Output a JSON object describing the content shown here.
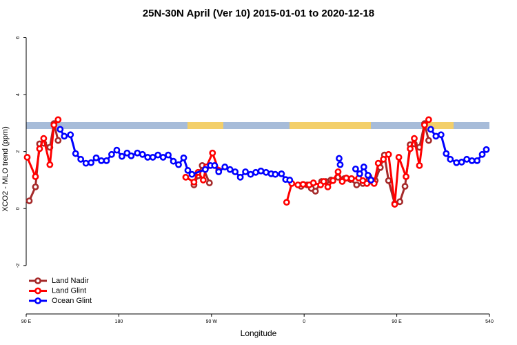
{
  "chart_data": {
    "type": "line",
    "title": "25N-30N April (Ver 10)   2015-01-01 to 2020-12-18",
    "x_label": "Longitude",
    "y_label": "XCO2 - MLO trend (ppm)",
    "xlim": [
      90,
      540
    ],
    "xticks": [
      {
        "value": 90,
        "label": "90 E"
      },
      180,
      {
        "value": 270,
        "label": "90 W"
      },
      {
        "value": 360,
        "label": "0"
      },
      {
        "value": 450,
        "label": "90 E"
      },
      540
    ],
    "ylim": [
      -3.7,
      6.4
    ],
    "yticks": [
      -2,
      0,
      2,
      4,
      6
    ],
    "legend": "bottom-left",
    "series": [
      {
        "name": "Land Nadir",
        "color": "#a52a2a",
        "x": [
          93,
          99,
          103,
          107,
          113,
          117,
          121,
          null,
          253,
          257,
          261,
          268,
          null,
          357,
          363,
          367,
          371,
          377,
          381,
          386,
          393,
          399,
          405,
          411,
          417,
          423,
          429,
          434,
          438,
          442,
          448,
          453,
          458,
          463,
          467,
          472,
          477,
          481
        ],
        "values": [
          0.27,
          0.76,
          2.27,
          2.29,
          2.15,
          2.98,
          2.39,
          null,
          0.83,
          1.15,
          1.51,
          0.9,
          null,
          0.78,
          0.83,
          0.71,
          0.61,
          0.95,
          0.95,
          1.0,
          1.1,
          1.05,
          1.02,
          0.83,
          0.88,
          1.12,
          0.98,
          1.44,
          1.88,
          0.98,
          0.17,
          0.24,
          0.78,
          2.24,
          2.27,
          2.15,
          2.98,
          2.39
        ]
      },
      {
        "name": "Land Glint",
        "color": "#ff0000",
        "x": [
          91,
          99,
          103,
          107,
          113,
          117,
          121,
          null,
          245,
          253,
          257,
          262,
          265,
          271,
          277,
          null,
          343,
          348,
          354,
          359,
          365,
          369,
          376,
          379,
          383,
          388,
          393,
          397,
          401,
          406,
          413,
          417,
          421,
          428,
          432,
          437,
          442,
          448,
          452,
          459,
          463,
          467,
          472,
          477,
          481
        ],
        "values": [
          1.8,
          1.12,
          2.1,
          2.46,
          1.54,
          2.93,
          3.12,
          null,
          1.1,
          0.93,
          1.27,
          1.0,
          1.46,
          1.95,
          1.34,
          null,
          0.22,
          0.88,
          0.83,
          0.85,
          0.83,
          0.9,
          0.83,
          0.95,
          0.76,
          0.98,
          1.29,
          0.95,
          1.07,
          1.05,
          1.07,
          0.98,
          0.88,
          0.88,
          1.59,
          1.73,
          1.9,
          0.15,
          1.8,
          1.12,
          2.1,
          2.46,
          1.51,
          2.93,
          3.12
        ]
      },
      {
        "name": "Ocean Glint",
        "color": "#0000ff",
        "x": [
          123,
          127,
          133,
          138,
          143,
          148,
          153,
          158,
          163,
          168,
          173,
          178,
          183,
          188,
          192,
          198,
          203,
          208,
          213,
          218,
          223,
          228,
          233,
          238,
          243,
          247,
          251,
          264,
          269,
          273,
          277,
          283,
          288,
          293,
          298,
          303,
          308,
          313,
          318,
          323,
          328,
          332,
          338,
          342,
          346,
          null,
          394,
          395,
          null,
          410,
          414,
          418,
          422,
          425,
          null,
          483,
          488,
          493,
          498,
          502,
          508,
          513,
          518,
          523,
          528,
          533,
          537
        ],
        "values": [
          2.78,
          2.54,
          2.59,
          1.93,
          1.73,
          1.59,
          1.61,
          1.78,
          1.68,
          1.68,
          1.9,
          2.05,
          1.83,
          1.95,
          1.85,
          1.95,
          1.9,
          1.8,
          1.8,
          1.88,
          1.8,
          1.88,
          1.66,
          1.54,
          1.78,
          1.34,
          1.2,
          1.37,
          1.51,
          1.51,
          1.29,
          1.46,
          1.37,
          1.29,
          1.1,
          1.29,
          1.2,
          1.27,
          1.32,
          1.27,
          1.22,
          1.2,
          1.22,
          1.02,
          1.0,
          null,
          1.76,
          1.54,
          null,
          1.39,
          1.22,
          1.46,
          1.17,
          1.0,
          null,
          2.78,
          2.54,
          2.59,
          1.93,
          1.73,
          1.61,
          1.63,
          1.73,
          1.68,
          1.68,
          1.9,
          2.07
        ]
      }
    ]
  }
}
